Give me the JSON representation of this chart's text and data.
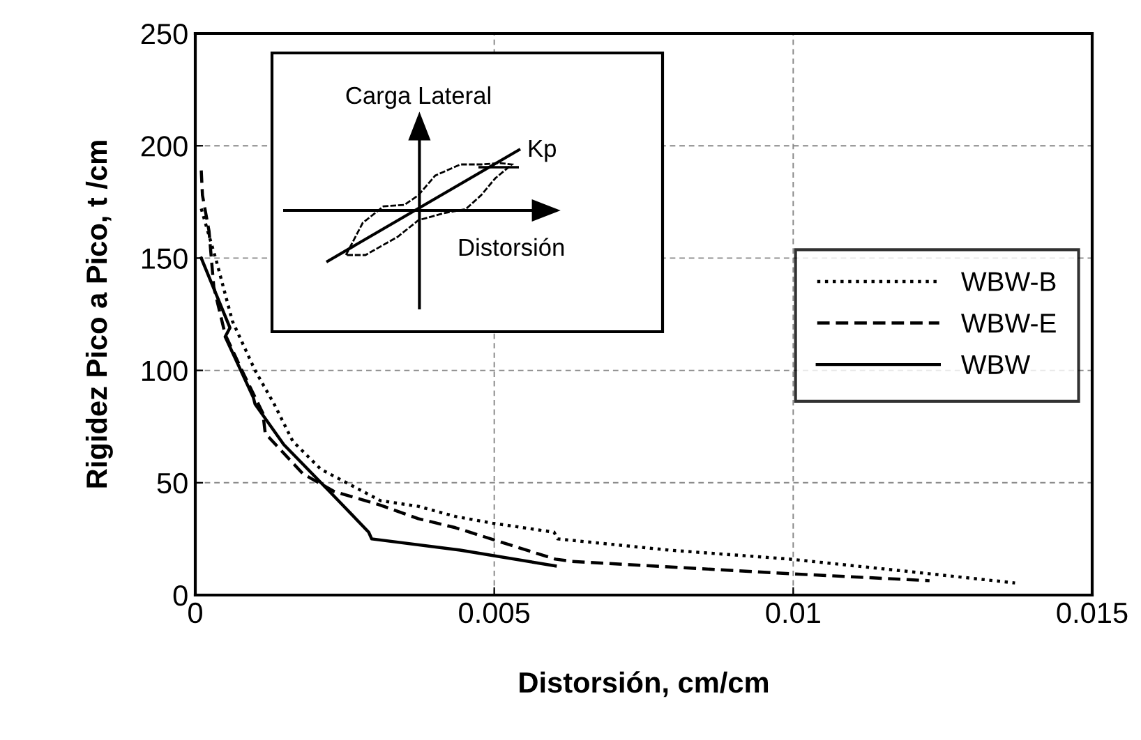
{
  "chart_data": {
    "type": "line",
    "xlabel": "Distorsión, cm/cm",
    "ylabel": "Rigidez Pico a Pico, t /cm",
    "xlim": [
      0,
      0.015
    ],
    "xticks": [
      0,
      0.005,
      0.01,
      0.015
    ],
    "ylim": [
      0,
      250
    ],
    "yticks": [
      0,
      50,
      100,
      150,
      200,
      250
    ],
    "grid": true,
    "legend": "right",
    "marker": "none",
    "annotations": [
      "Carga Lateral",
      "Kp",
      "Distorsión"
    ],
    "series": [
      {
        "name": "WBW-B",
        "color": "#000000",
        "line_style": "dotted",
        "x": [
          0.0001,
          0.00023,
          0.00035,
          0.00062,
          0.001,
          0.00132,
          0.00163,
          0.0021,
          0.0031,
          0.00373,
          0.00435,
          0.00497,
          0.006,
          0.00606,
          0.00793,
          0.00995,
          0.01189,
          0.01371
        ],
        "values": [
          172,
          160,
          149,
          122,
          100,
          85,
          68.5,
          56,
          42,
          39.5,
          35,
          32,
          28,
          25,
          20,
          16,
          10.6,
          5.4
        ]
      },
      {
        "name": "WBW-E",
        "color": "#000000",
        "line_style": "dashed",
        "x": [
          0.0001,
          0.00012,
          0.00023,
          0.00031,
          0.0005,
          0.00078,
          0.00113,
          0.00117,
          0.0018,
          0.00233,
          0.0031,
          0.00373,
          0.00435,
          0.00602,
          0.0063,
          0.00995,
          0.01228
        ],
        "values": [
          189,
          178,
          162,
          137,
          116,
          100,
          81,
          72,
          54,
          46,
          40,
          34,
          30,
          16,
          15,
          9.5,
          6.4
        ]
      },
      {
        "name": "WBW",
        "color": "#000000",
        "line_style": "solid",
        "x": [
          0.0001,
          0.00058,
          0.0005,
          0.00097,
          0.001,
          0.00148,
          0.00225,
          0.0029,
          0.00295,
          0.00443,
          0.00602
        ],
        "values": [
          150,
          119,
          115,
          88,
          85,
          67,
          46,
          28,
          25,
          20,
          13
        ]
      }
    ]
  }
}
